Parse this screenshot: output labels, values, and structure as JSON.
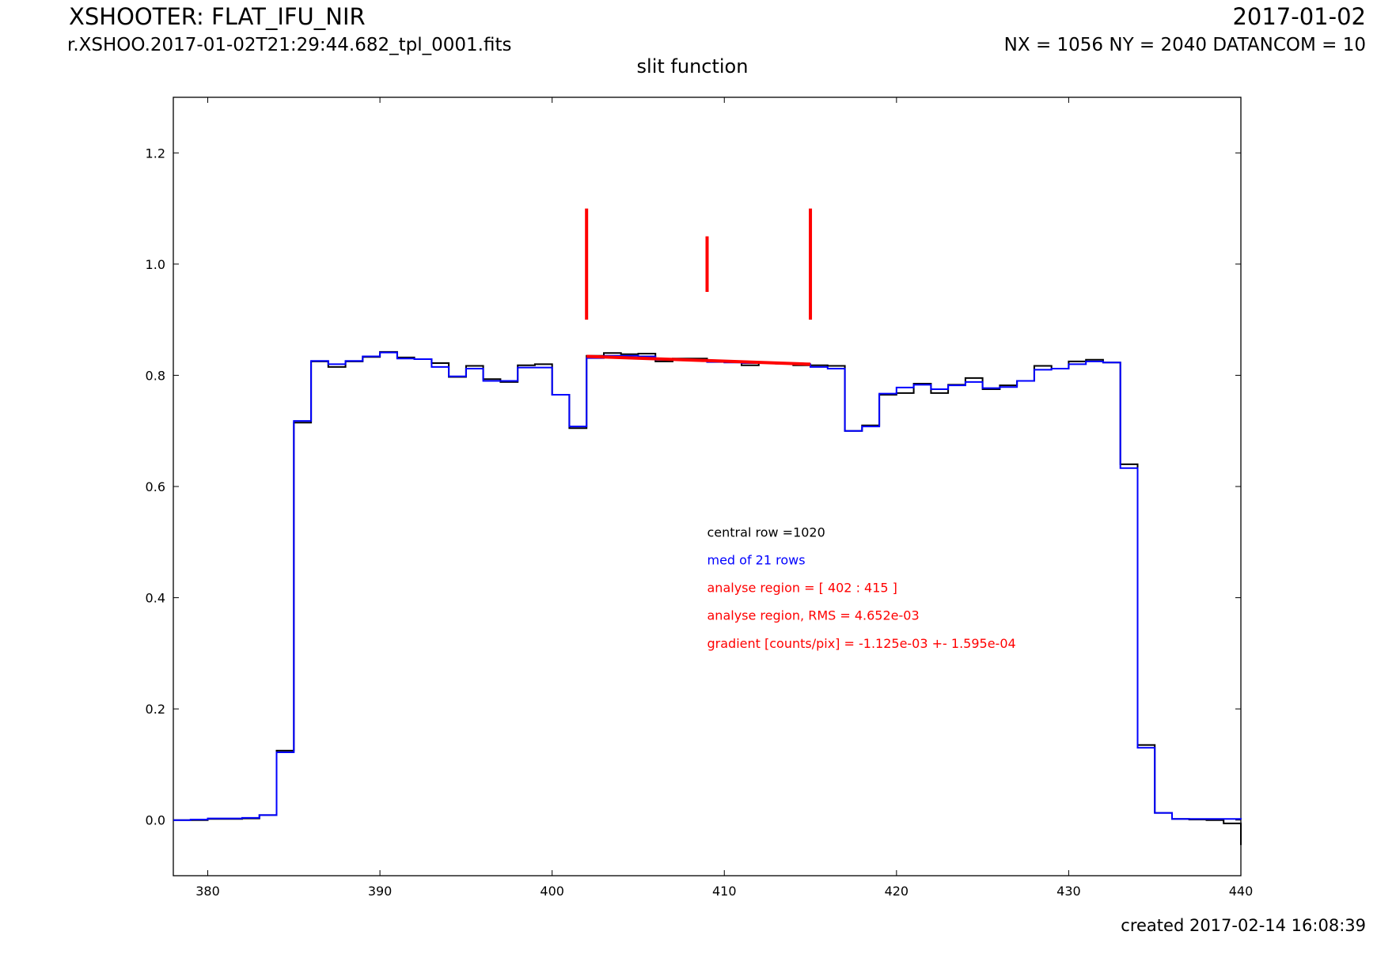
{
  "header": {
    "title": "XSHOOTER: FLAT_IFU_NIR",
    "filename": "r.XSHOO.2017-01-02T21:29:44.682_tpl_0001.fits",
    "date": "2017-01-02",
    "dims": "NX = 1056 NY = 2040 DATANCOM = 10"
  },
  "footer": {
    "created": "created 2017-02-14 16:08:39"
  },
  "chart_data": {
    "type": "line",
    "title": "slit function",
    "xlabel": "",
    "ylabel": "",
    "xlim": [
      378,
      440
    ],
    "ylim": [
      -0.1,
      1.3
    ],
    "grid": false,
    "xticks": [
      380,
      390,
      400,
      410,
      420,
      430,
      440
    ],
    "yticks": [
      0.0,
      0.2,
      0.4,
      0.6,
      0.8,
      1.0,
      1.2
    ],
    "step_x": [
      378,
      379,
      380,
      381,
      382,
      383,
      384,
      385,
      386,
      387,
      388,
      389,
      390,
      391,
      392,
      393,
      394,
      395,
      396,
      397,
      398,
      399,
      400,
      401,
      402,
      403,
      404,
      405,
      406,
      407,
      408,
      409,
      410,
      411,
      412,
      413,
      414,
      415,
      416,
      417,
      418,
      419,
      420,
      421,
      422,
      423,
      424,
      425,
      426,
      427,
      428,
      429,
      430,
      431,
      432,
      433,
      434,
      435,
      436,
      437,
      438,
      439,
      440
    ],
    "series": [
      {
        "name": "central row =1020",
        "color": "#000000",
        "values": [
          0.0,
          0.0,
          0.002,
          0.002,
          0.003,
          0.009,
          0.125,
          0.715,
          0.825,
          0.815,
          0.825,
          0.833,
          0.842,
          0.832,
          0.829,
          0.822,
          0.797,
          0.817,
          0.793,
          0.788,
          0.818,
          0.82,
          0.765,
          0.705,
          0.835,
          0.84,
          0.838,
          0.839,
          0.825,
          0.83,
          0.83,
          0.825,
          0.824,
          0.818,
          0.823,
          0.822,
          0.818,
          0.818,
          0.817,
          0.7,
          0.71,
          0.765,
          0.768,
          0.785,
          0.768,
          0.783,
          0.795,
          0.775,
          0.782,
          0.79,
          0.817,
          0.812,
          0.825,
          0.828,
          0.823,
          0.64,
          0.135,
          0.013,
          0.002,
          0.001,
          0.0,
          -0.006,
          -0.045
        ]
      },
      {
        "name": "med of 21 rows",
        "color": "#0000ff",
        "values": [
          0.0,
          0.001,
          0.003,
          0.003,
          0.004,
          0.009,
          0.122,
          0.718,
          0.826,
          0.82,
          0.826,
          0.834,
          0.841,
          0.83,
          0.829,
          0.815,
          0.798,
          0.812,
          0.79,
          0.79,
          0.814,
          0.814,
          0.765,
          0.708,
          0.831,
          0.835,
          0.835,
          0.834,
          0.828,
          0.828,
          0.827,
          0.824,
          0.823,
          0.822,
          0.822,
          0.821,
          0.82,
          0.815,
          0.812,
          0.7,
          0.708,
          0.767,
          0.778,
          0.783,
          0.775,
          0.782,
          0.788,
          0.777,
          0.779,
          0.79,
          0.81,
          0.812,
          0.82,
          0.825,
          0.823,
          0.633,
          0.13,
          0.013,
          0.002,
          0.002,
          0.002,
          0.002,
          0.001
        ]
      }
    ],
    "fit_line": {
      "color": "#ff0000",
      "x": [
        402,
        415
      ],
      "y": [
        0.834,
        0.82
      ]
    },
    "markers": [
      {
        "x": 402,
        "y": [
          0.9,
          1.1
        ]
      },
      {
        "x": 409,
        "y": [
          0.95,
          1.05
        ]
      },
      {
        "x": 415,
        "y": [
          0.9,
          1.1
        ]
      }
    ],
    "annotations": [
      {
        "text": "central row =1020",
        "color": "#000000",
        "x": 409,
        "y": 0.51
      },
      {
        "text": "med of 21 rows",
        "color": "#0000ff",
        "x": 409,
        "y": 0.46
      },
      {
        "text": "analyse region = [ 402 : 415 ]",
        "color": "#ff0000",
        "x": 409,
        "y": 0.41
      },
      {
        "text": "analyse region, RMS = 4.652e-03",
        "color": "#ff0000",
        "x": 409,
        "y": 0.36
      },
      {
        "text": "gradient [counts/pix] = -1.125e-03 +- 1.595e-04",
        "color": "#ff0000",
        "x": 409,
        "y": 0.31
      }
    ]
  }
}
